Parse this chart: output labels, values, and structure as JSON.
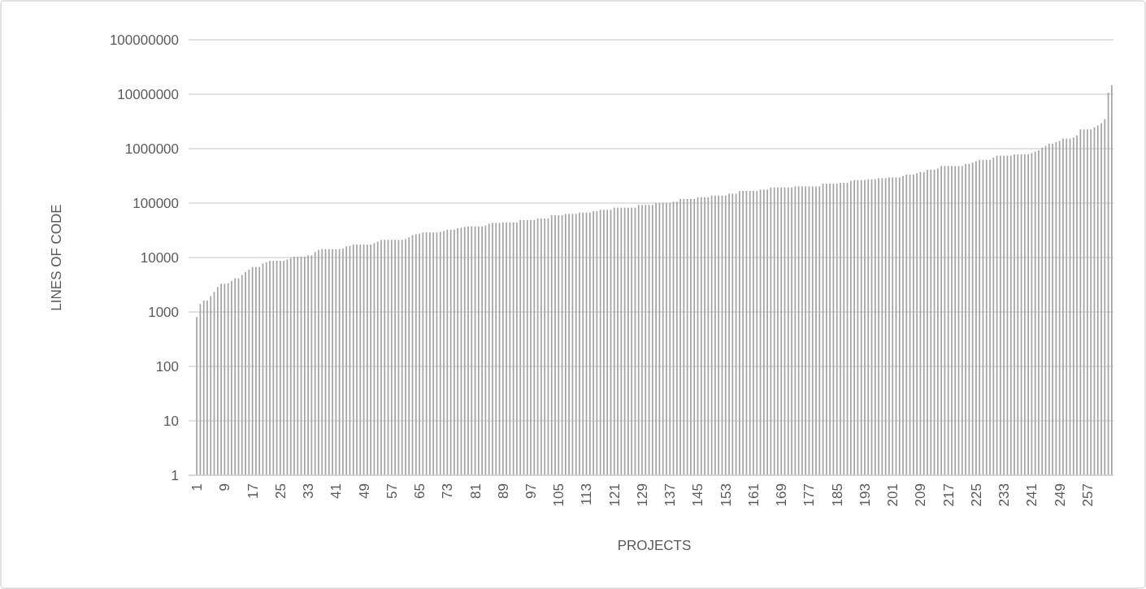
{
  "chart_data": {
    "type": "bar",
    "xlabel": "PROJECTS",
    "ylabel": "LINES OF CODE",
    "log": "y",
    "grid": "y",
    "color": "#a3a3a3",
    "ylim": [
      1,
      100000000
    ],
    "yticks": [
      1,
      10,
      100,
      1000,
      10000,
      100000,
      1000000,
      10000000,
      100000000
    ],
    "categories": [
      "1",
      null,
      null,
      null,
      null,
      null,
      null,
      null,
      "9",
      null,
      null,
      null,
      null,
      null,
      null,
      null,
      "17",
      null,
      null,
      null,
      null,
      null,
      null,
      null,
      "25",
      null,
      null,
      null,
      null,
      null,
      null,
      null,
      "33",
      null,
      null,
      null,
      null,
      null,
      null,
      null,
      "41",
      null,
      null,
      null,
      null,
      null,
      null,
      null,
      "49",
      null,
      null,
      null,
      null,
      null,
      null,
      null,
      "57",
      null,
      null,
      null,
      null,
      null,
      null,
      null,
      "65",
      null,
      null,
      null,
      null,
      null,
      null,
      null,
      "73",
      null,
      null,
      null,
      null,
      null,
      null,
      null,
      "81",
      null,
      null,
      null,
      null,
      null,
      null,
      null,
      "89",
      null,
      null,
      null,
      null,
      null,
      null,
      null,
      "97",
      null,
      null,
      null,
      null,
      null,
      null,
      null,
      "105",
      null,
      null,
      null,
      null,
      null,
      null,
      null,
      "113",
      null,
      null,
      null,
      null,
      null,
      null,
      null,
      "121",
      null,
      null,
      null,
      null,
      null,
      null,
      null,
      "129",
      null,
      null,
      null,
      null,
      null,
      null,
      null,
      "137",
      null,
      null,
      null,
      null,
      null,
      null,
      null,
      "145",
      null,
      null,
      null,
      null,
      null,
      null,
      null,
      "153",
      null,
      null,
      null,
      null,
      null,
      null,
      null,
      "161",
      null,
      null,
      null,
      null,
      null,
      null,
      null,
      "169",
      null,
      null,
      null,
      null,
      null,
      null,
      null,
      "177",
      null,
      null,
      null,
      null,
      null,
      null,
      null,
      "185",
      null,
      null,
      null,
      null,
      null,
      null,
      null,
      "193",
      null,
      null,
      null,
      null,
      null,
      null,
      null,
      "201",
      null,
      null,
      null,
      null,
      null,
      null,
      null,
      "209",
      null,
      null,
      null,
      null,
      null,
      null,
      null,
      "217",
      null,
      null,
      null,
      null,
      null,
      null,
      null,
      "225",
      null,
      null,
      null,
      null,
      null,
      null,
      null,
      "233",
      null,
      null,
      null,
      null,
      null,
      null,
      null,
      "241",
      null,
      null,
      null,
      null,
      null,
      null,
      null,
      "249",
      null,
      null,
      null,
      null,
      null,
      null,
      null,
      "257",
      null,
      null,
      null,
      null,
      null,
      null,
      null
    ],
    "values": [
      810,
      1400,
      1620,
      1620,
      1960,
      2340,
      2870,
      3300,
      3300,
      3380,
      3700,
      4150,
      4150,
      4800,
      5400,
      6000,
      6700,
      6700,
      6700,
      7800,
      8200,
      8700,
      8700,
      8700,
      8700,
      8700,
      9200,
      9800,
      10350,
      10350,
      10350,
      10350,
      10960,
      10960,
      12600,
      13800,
      14250,
      14250,
      14250,
      14250,
      14250,
      14250,
      14600,
      16000,
      16400,
      17300,
      17300,
      17300,
      17300,
      17300,
      17300,
      18400,
      19500,
      21100,
      21100,
      21100,
      21100,
      21100,
      21100,
      21100,
      21800,
      23600,
      25900,
      26800,
      27400,
      29000,
      29000,
      29000,
      29000,
      29000,
      29700,
      30800,
      32500,
      32500,
      32500,
      34500,
      35300,
      36500,
      37300,
      37300,
      37300,
      37300,
      37300,
      38600,
      41900,
      43400,
      43400,
      43400,
      44000,
      44000,
      44000,
      44000,
      44000,
      48800,
      48800,
      48800,
      48800,
      48800,
      52300,
      52300,
      52300,
      52300,
      59900,
      59900,
      59900,
      59900,
      63400,
      63400,
      63400,
      63400,
      67100,
      67100,
      67100,
      67100,
      71000,
      71000,
      75200,
      75200,
      75200,
      75200,
      82400,
      82400,
      82400,
      82400,
      82400,
      82400,
      82400,
      92300,
      92300,
      92300,
      92300,
      92300,
      100000,
      100000,
      100000,
      100000,
      100000,
      106000,
      106000,
      119000,
      119000,
      119000,
      119000,
      119000,
      128000,
      128000,
      128000,
      128000,
      138000,
      138000,
      138000,
      138000,
      138000,
      149000,
      149000,
      149000,
      167000,
      167000,
      167000,
      167000,
      167000,
      167000,
      177000,
      177000,
      177000,
      194000,
      194000,
      194000,
      194000,
      194000,
      194000,
      194000,
      203000,
      203000,
      203000,
      203000,
      203000,
      203000,
      203000,
      203000,
      228000,
      228000,
      228000,
      228000,
      228000,
      236000,
      236000,
      236000,
      256000,
      265000,
      265000,
      265000,
      265000,
      274000,
      274000,
      274000,
      287000,
      287000,
      287000,
      297000,
      297000,
      297000,
      297000,
      315000,
      333000,
      333000,
      333000,
      353000,
      373000,
      373000,
      409000,
      409000,
      409000,
      433000,
      481000,
      481000,
      481000,
      481000,
      481000,
      481000,
      481000,
      526000,
      526000,
      557000,
      590000,
      625000,
      625000,
      625000,
      625000,
      685000,
      743000,
      743000,
      743000,
      743000,
      743000,
      787000,
      787000,
      787000,
      787000,
      787000,
      832000,
      881000,
      933000,
      1050000,
      1130000,
      1240000,
      1240000,
      1320000,
      1390000,
      1530000,
      1530000,
      1530000,
      1600000,
      1750000,
      2260000,
      2260000,
      2260000,
      2260000,
      2470000,
      2680000,
      2940000,
      3490000,
      10700000,
      14600000
    ]
  }
}
